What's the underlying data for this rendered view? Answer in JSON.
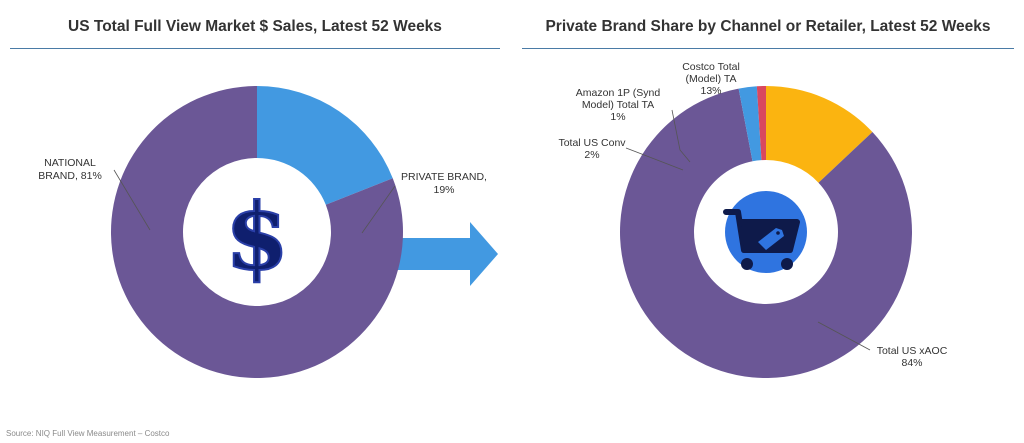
{
  "chart_data": [
    {
      "type": "pie",
      "title": "US Total Full View Market $ Sales, Latest 52 Weeks",
      "slices": [
        {
          "label": "PRIVATE BRAND, 19%",
          "value": 19,
          "color": "#4299e1"
        },
        {
          "label": "NATIONAL BRAND, 81%",
          "value": 81,
          "color": "#6b5796"
        }
      ],
      "center_icon": "dollar-sign-icon"
    },
    {
      "type": "pie",
      "title": "Private Brand Share by Channel or Retailer, Latest 52 Weeks",
      "slices": [
        {
          "label": "Costco Total (Model) TA 13%",
          "value": 13,
          "color": "#fbb410"
        },
        {
          "label": "Total US xAOC 84%",
          "value": 84,
          "color": "#6b5796"
        },
        {
          "label": "Total US Conv 2%",
          "value": 2,
          "color": "#4299e1"
        },
        {
          "label": "Amazon 1P (Synd Model) Total TA 1%",
          "value": 1,
          "color": "#d9485f"
        }
      ],
      "center_icon": "shopping-cart-tag-icon"
    }
  ],
  "arrow_icon": "right-arrow-icon",
  "source": "Source: NIQ Full View Measurement – Costco"
}
